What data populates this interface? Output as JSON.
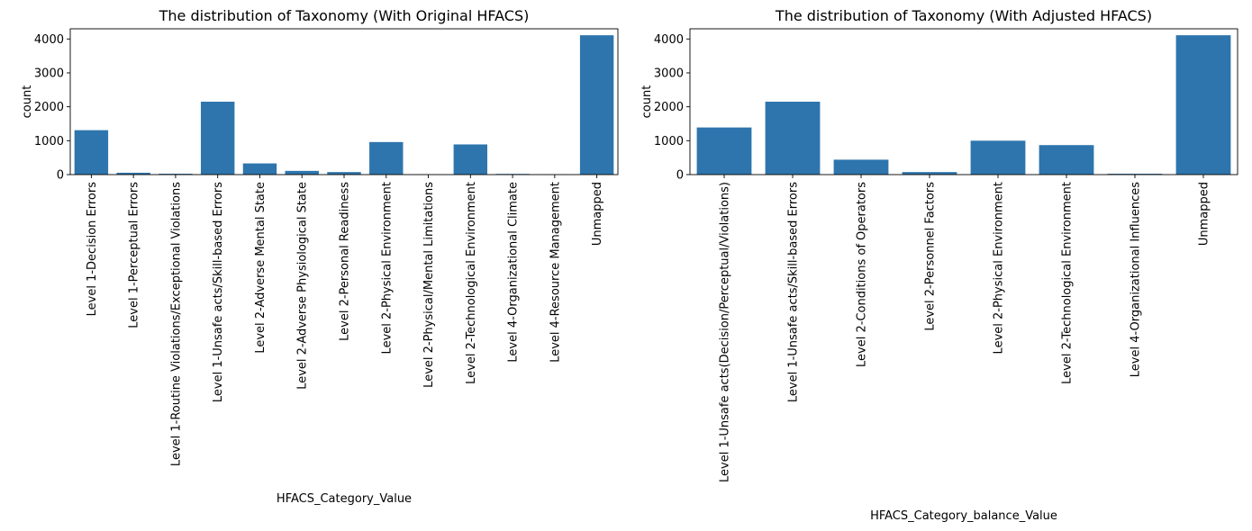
{
  "chart_data": [
    {
      "type": "bar",
      "title": "The distribution of Taxonomy (With Original HFACS)",
      "xlabel": "HFACS_Category_Value",
      "ylabel": "count",
      "ylim": [
        0,
        4300
      ],
      "yticks": [
        0,
        1000,
        2000,
        3000,
        4000
      ],
      "grid": false,
      "bar_color": "#2e75ad",
      "categories": [
        "Level 1-Decision Errors",
        "Level 1-Perceptual Errors",
        "Level 1-Routine Violations/Exceptional Violations",
        "Level 1-Unsafe acts/Skill-based Errors",
        "Level 2-Adverse Mental State",
        "Level 2-Adverse Physiological State",
        "Level 2-Personal Readiness",
        "Level 2-Physical Environment",
        "Level 2-Physical/Mental Limitations",
        "Level 2-Technological Environment",
        "Level 4-Organizational Climate",
        "Level 4-Resource Management",
        "Unmapped"
      ],
      "values": [
        1310,
        55,
        25,
        2150,
        330,
        110,
        75,
        960,
        5,
        890,
        20,
        5,
        4110
      ]
    },
    {
      "type": "bar",
      "title": "The distribution of Taxonomy (With Adjusted HFACS)",
      "xlabel": "HFACS_Category_balance_Value",
      "ylabel": "count",
      "ylim": [
        0,
        4300
      ],
      "yticks": [
        0,
        1000,
        2000,
        3000,
        4000
      ],
      "grid": false,
      "bar_color": "#2e75ad",
      "categories": [
        "Level 1-Unsafe acts(Decision/Perceptual/Violations)",
        "Level 1-Unsafe acts/Skill-based Errors",
        "Level 2-Conditions of Operators",
        "Level 2-Personnel Factors",
        "Level 2-Physical Environment",
        "Level 2-Technological Environment",
        "Level 4-Organizational Influences",
        "Unmapped"
      ],
      "values": [
        1390,
        2150,
        440,
        75,
        1000,
        870,
        25,
        4110
      ]
    }
  ]
}
